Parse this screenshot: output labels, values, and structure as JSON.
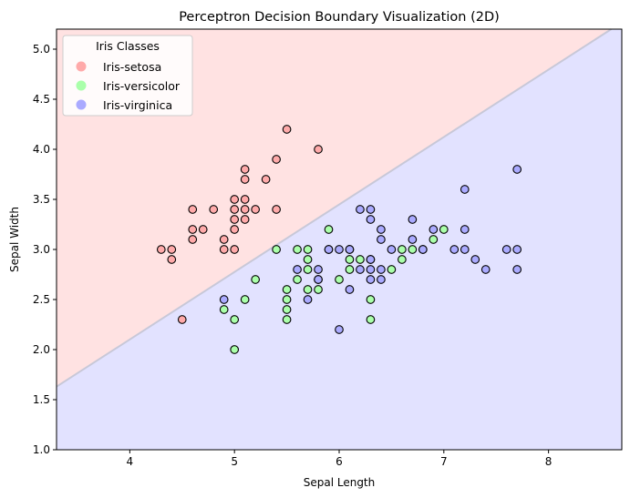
{
  "chart_data": {
    "type": "scatter",
    "title": "Perceptron Decision Boundary Visualization (2D)",
    "xlabel": "Sepal Length",
    "ylabel": "Sepal Width",
    "xlim": [
      3.3,
      8.7
    ],
    "ylim": [
      1.0,
      5.2
    ],
    "xticks": [
      4,
      5,
      6,
      7,
      8
    ],
    "yticks": [
      1.0,
      1.5,
      2.0,
      2.5,
      3.0,
      3.5,
      4.0,
      4.5,
      5.0
    ],
    "grid": false,
    "legend": {
      "title": "Iris Classes",
      "placement": "top-left",
      "entries": [
        "Iris-setosa",
        "Iris-versicolor",
        "Iris-virginica"
      ]
    },
    "decision_boundary": {
      "points": [
        [
          3.3,
          1.63
        ],
        [
          8.6,
          5.2
        ]
      ],
      "upper_region_color": "#ffe2e2",
      "lower_region_color": "#e2e2ff",
      "line_color": "#c8c8d8"
    },
    "series": [
      {
        "name": "Iris-setosa",
        "color": "#ffaaaa",
        "points": [
          [
            4.3,
            3.0
          ],
          [
            4.4,
            3.0
          ],
          [
            4.4,
            2.9
          ],
          [
            4.5,
            2.3
          ],
          [
            4.6,
            3.4
          ],
          [
            4.6,
            3.2
          ],
          [
            4.6,
            3.1
          ],
          [
            4.7,
            3.2
          ],
          [
            4.8,
            3.4
          ],
          [
            4.9,
            3.1
          ],
          [
            4.9,
            3.0
          ],
          [
            5.0,
            3.5
          ],
          [
            5.0,
            3.4
          ],
          [
            5.0,
            3.3
          ],
          [
            5.0,
            3.2
          ],
          [
            5.0,
            3.0
          ],
          [
            5.1,
            3.8
          ],
          [
            5.1,
            3.7
          ],
          [
            5.1,
            3.5
          ],
          [
            5.1,
            3.4
          ],
          [
            5.1,
            3.3
          ],
          [
            5.2,
            3.4
          ],
          [
            5.3,
            3.7
          ],
          [
            5.4,
            3.9
          ],
          [
            5.4,
            3.4
          ],
          [
            5.5,
            4.2
          ],
          [
            5.8,
            4.0
          ]
        ]
      },
      {
        "name": "Iris-versicolor",
        "color": "#aaffaa",
        "points": [
          [
            4.9,
            2.4
          ],
          [
            5.0,
            2.3
          ],
          [
            5.0,
            2.0
          ],
          [
            5.1,
            2.5
          ],
          [
            5.2,
            2.7
          ],
          [
            5.4,
            3.0
          ],
          [
            5.5,
            2.6
          ],
          [
            5.5,
            2.5
          ],
          [
            5.5,
            2.4
          ],
          [
            5.5,
            2.3
          ],
          [
            5.6,
            3.0
          ],
          [
            5.6,
            2.7
          ],
          [
            5.7,
            3.0
          ],
          [
            5.7,
            2.9
          ],
          [
            5.7,
            2.8
          ],
          [
            5.7,
            2.6
          ],
          [
            5.8,
            2.7
          ],
          [
            5.8,
            2.6
          ],
          [
            5.9,
            3.2
          ],
          [
            5.9,
            3.0
          ],
          [
            6.0,
            2.7
          ],
          [
            6.1,
            3.0
          ],
          [
            6.1,
            2.9
          ],
          [
            6.1,
            2.8
          ],
          [
            6.2,
            2.9
          ],
          [
            6.3,
            2.5
          ],
          [
            6.3,
            2.3
          ],
          [
            6.3,
            2.9
          ],
          [
            6.5,
            2.8
          ],
          [
            6.6,
            3.0
          ],
          [
            6.6,
            2.9
          ],
          [
            6.7,
            3.0
          ],
          [
            6.8,
            3.0
          ],
          [
            6.9,
            3.1
          ],
          [
            7.0,
            3.2
          ]
        ]
      },
      {
        "name": "Iris-virginica",
        "color": "#aaaaff",
        "points": [
          [
            4.9,
            2.5
          ],
          [
            5.6,
            2.8
          ],
          [
            5.7,
            2.5
          ],
          [
            5.8,
            2.8
          ],
          [
            5.8,
            2.7
          ],
          [
            5.9,
            3.0
          ],
          [
            6.0,
            3.0
          ],
          [
            6.0,
            2.2
          ],
          [
            6.1,
            3.0
          ],
          [
            6.1,
            2.6
          ],
          [
            6.2,
            3.4
          ],
          [
            6.2,
            2.8
          ],
          [
            6.3,
            3.4
          ],
          [
            6.3,
            3.3
          ],
          [
            6.3,
            2.9
          ],
          [
            6.3,
            2.8
          ],
          [
            6.3,
            2.7
          ],
          [
            6.4,
            3.2
          ],
          [
            6.4,
            3.1
          ],
          [
            6.4,
            2.8
          ],
          [
            6.4,
            2.7
          ],
          [
            6.5,
            3.0
          ],
          [
            6.7,
            3.3
          ],
          [
            6.7,
            3.1
          ],
          [
            6.8,
            3.0
          ],
          [
            6.9,
            3.2
          ],
          [
            7.1,
            3.0
          ],
          [
            7.2,
            3.6
          ],
          [
            7.2,
            3.2
          ],
          [
            7.2,
            3.0
          ],
          [
            7.3,
            2.9
          ],
          [
            7.4,
            2.8
          ],
          [
            7.6,
            3.0
          ],
          [
            7.7,
            3.8
          ],
          [
            7.7,
            3.0
          ],
          [
            7.7,
            2.8
          ]
        ]
      }
    ]
  }
}
